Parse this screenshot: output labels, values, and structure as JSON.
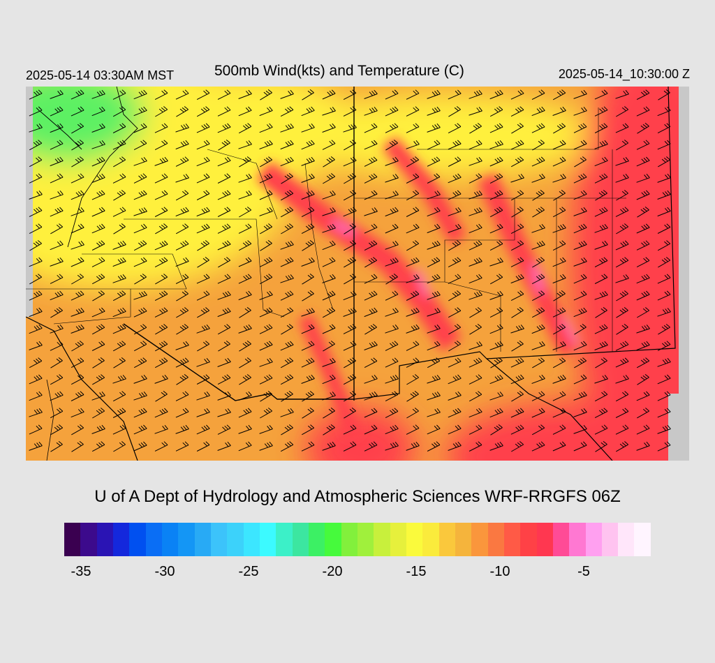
{
  "header": {
    "local_time": "2025-05-14 03:30AM MST",
    "title": "500mb Wind(kts) and Temperature (C)",
    "valid_time": "2025-05-14_10:30:00 Z"
  },
  "map": {
    "region": "Arizona / New Mexico / Four Corners",
    "field": "500mb temperature (C)",
    "wind_barb_units": "kts",
    "prevailing_wind": "westerly to southwesterly",
    "colors": {
      "cold_northwest": "#5df064",
      "mid": "#fff03c",
      "warm": "#f5a23c",
      "hot": "#ff3f4b",
      "hottest": "#ff7ad4",
      "no_data": "#c8c8c8"
    }
  },
  "footer": {
    "credit": "U of A Dept of Hydrology and Atmospheric Sciences WRF-RRGFS 06Z"
  },
  "colorbar": {
    "colors": [
      "#3a0050",
      "#3c0a8c",
      "#2a14b4",
      "#1428dc",
      "#0050f0",
      "#0a6ef5",
      "#0a82f5",
      "#1496f5",
      "#28aaf5",
      "#3cc3fa",
      "#3cd2fa",
      "#3ce6ff",
      "#3cfaff",
      "#3cf0c8",
      "#3ce6a0",
      "#3cf064",
      "#46fa3c",
      "#82f03c",
      "#a0f03c",
      "#c8f03c",
      "#e6f03c",
      "#fafa3c",
      "#faeb3c",
      "#fac83c",
      "#f5b43c",
      "#fa963c",
      "#fa7841",
      "#ff5a46",
      "#ff4146",
      "#ff3750",
      "#ff4b96",
      "#ff78d2",
      "#ffa0f0",
      "#ffc3f0",
      "#ffe6fa",
      "#fff5ff"
    ],
    "min": -36,
    "max": -1,
    "tick_values": [
      -35,
      -30,
      -25,
      -20,
      -15,
      -10,
      -5
    ],
    "tick_labels": [
      "-35",
      "-30",
      "-25",
      "-20",
      "-15",
      "-10",
      "-5"
    ]
  }
}
